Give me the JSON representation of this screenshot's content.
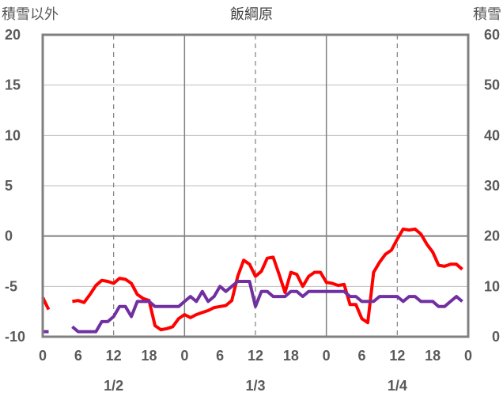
{
  "chart_data": {
    "type": "line",
    "title": "飯綱原",
    "left_axis_label": "積雪以外",
    "right_axis_label": "積雪",
    "y_left": {
      "min": -10,
      "max": 20,
      "ticks": [
        "20",
        "15",
        "10",
        "5",
        "0",
        "-5",
        "-10"
      ]
    },
    "y_right": {
      "min": 0,
      "max": 60,
      "ticks": [
        "60",
        "50",
        "40",
        "30",
        "20",
        "10",
        "0"
      ]
    },
    "x_axis": {
      "min": 0,
      "max": 72,
      "hour_ticks": [
        "0",
        "6",
        "12",
        "18",
        "0",
        "6",
        "12",
        "18",
        "0",
        "6",
        "12",
        "18",
        "0"
      ],
      "date_labels": [
        {
          "label": "1/2",
          "hour": 12
        },
        {
          "label": "1/3",
          "hour": 36
        },
        {
          "label": "1/4",
          "hour": 60
        }
      ]
    },
    "grid": {
      "solid_hours": [
        24,
        48
      ],
      "dashed_hours": [
        12,
        36,
        60
      ],
      "zero_line": true
    },
    "series": [
      {
        "color": "#ff0000",
        "axis": "left",
        "points": [
          [
            0,
            -6.1
          ],
          [
            1,
            -7.3
          ],
          [
            null,
            null
          ],
          [
            5,
            -6.5
          ],
          [
            6,
            -6.4
          ],
          [
            7,
            -6.6
          ],
          [
            8,
            -5.8
          ],
          [
            9,
            -4.9
          ],
          [
            10,
            -4.4
          ],
          [
            11,
            -4.5
          ],
          [
            12,
            -4.7
          ],
          [
            13,
            -4.2
          ],
          [
            14,
            -4.3
          ],
          [
            15,
            -4.7
          ],
          [
            16,
            -5.8
          ],
          [
            17,
            -6.2
          ],
          [
            18,
            -6.4
          ],
          [
            19,
            -8.9
          ],
          [
            20,
            -9.3
          ],
          [
            21,
            -9.2
          ],
          [
            22,
            -9.0
          ],
          [
            23,
            -8.2
          ],
          [
            24,
            -7.8
          ],
          [
            25,
            -8.1
          ],
          [
            26,
            -7.8
          ],
          [
            27,
            -7.6
          ],
          [
            28,
            -7.4
          ],
          [
            29,
            -7.1
          ],
          [
            30,
            -7.0
          ],
          [
            31,
            -6.9
          ],
          [
            32,
            -6.4
          ],
          [
            33,
            -4.0
          ],
          [
            34,
            -2.4
          ],
          [
            35,
            -2.8
          ],
          [
            36,
            -4.0
          ],
          [
            37,
            -3.5
          ],
          [
            38,
            -2.2
          ],
          [
            39,
            -2.1
          ],
          [
            40,
            -3.8
          ],
          [
            41,
            -5.6
          ],
          [
            42,
            -3.6
          ],
          [
            43,
            -3.8
          ],
          [
            44,
            -5.0
          ],
          [
            45,
            -4.0
          ],
          [
            46,
            -3.6
          ],
          [
            47,
            -3.6
          ],
          [
            48,
            -4.6
          ],
          [
            49,
            -4.7
          ],
          [
            50,
            -4.9
          ],
          [
            51,
            -4.8
          ],
          [
            52,
            -6.8
          ],
          [
            53,
            -6.8
          ],
          [
            54,
            -8.2
          ],
          [
            55,
            -8.6
          ],
          [
            56,
            -3.6
          ],
          [
            57,
            -2.6
          ],
          [
            58,
            -1.8
          ],
          [
            59,
            -1.4
          ],
          [
            60,
            -0.3
          ],
          [
            61,
            0.7
          ],
          [
            62,
            0.6
          ],
          [
            63,
            0.7
          ],
          [
            64,
            0.2
          ],
          [
            65,
            -0.8
          ],
          [
            66,
            -1.6
          ],
          [
            67,
            -2.9
          ],
          [
            68,
            -3.0
          ],
          [
            69,
            -2.8
          ],
          [
            70,
            -2.8
          ],
          [
            71,
            -3.3
          ]
        ]
      },
      {
        "color": "#7030a0",
        "axis": "left",
        "points": [
          [
            0,
            -9.5
          ],
          [
            1,
            -9.5
          ],
          [
            null,
            null
          ],
          [
            5,
            -9.0
          ],
          [
            6,
            -9.5
          ],
          [
            7,
            -9.5
          ],
          [
            8,
            -9.5
          ],
          [
            9,
            -9.5
          ],
          [
            10,
            -8.5
          ],
          [
            11,
            -8.5
          ],
          [
            12,
            -8.0
          ],
          [
            13,
            -7.0
          ],
          [
            14,
            -7.0
          ],
          [
            15,
            -8.0
          ],
          [
            16,
            -6.5
          ],
          [
            17,
            -6.5
          ],
          [
            18,
            -6.5
          ],
          [
            19,
            -7.0
          ],
          [
            20,
            -7.0
          ],
          [
            21,
            -7.0
          ],
          [
            22,
            -7.0
          ],
          [
            23,
            -7.0
          ],
          [
            24,
            -6.5
          ],
          [
            25,
            -6.0
          ],
          [
            26,
            -6.5
          ],
          [
            27,
            -5.5
          ],
          [
            28,
            -6.5
          ],
          [
            29,
            -6.0
          ],
          [
            30,
            -5.0
          ],
          [
            31,
            -5.5
          ],
          [
            32,
            -5.0
          ],
          [
            33,
            -4.5
          ],
          [
            34,
            -4.5
          ],
          [
            35,
            -4.5
          ],
          [
            36,
            -7.0
          ],
          [
            37,
            -5.5
          ],
          [
            38,
            -5.5
          ],
          [
            39,
            -6.0
          ],
          [
            40,
            -6.0
          ],
          [
            41,
            -6.0
          ],
          [
            42,
            -5.5
          ],
          [
            43,
            -5.5
          ],
          [
            44,
            -6.0
          ],
          [
            45,
            -5.5
          ],
          [
            46,
            -5.5
          ],
          [
            47,
            -5.5
          ],
          [
            48,
            -5.5
          ],
          [
            49,
            -5.5
          ],
          [
            50,
            -5.5
          ],
          [
            51,
            -5.5
          ],
          [
            52,
            -6.0
          ],
          [
            53,
            -6.0
          ],
          [
            54,
            -6.5
          ],
          [
            55,
            -6.5
          ],
          [
            56,
            -6.5
          ],
          [
            57,
            -6.0
          ],
          [
            58,
            -6.0
          ],
          [
            59,
            -6.0
          ],
          [
            60,
            -6.0
          ],
          [
            61,
            -6.5
          ],
          [
            62,
            -6.0
          ],
          [
            63,
            -6.0
          ],
          [
            64,
            -6.5
          ],
          [
            65,
            -6.5
          ],
          [
            66,
            -6.5
          ],
          [
            67,
            -7.0
          ],
          [
            68,
            -7.0
          ],
          [
            69,
            -6.5
          ],
          [
            70,
            -6.0
          ],
          [
            71,
            -6.5
          ]
        ]
      }
    ]
  }
}
